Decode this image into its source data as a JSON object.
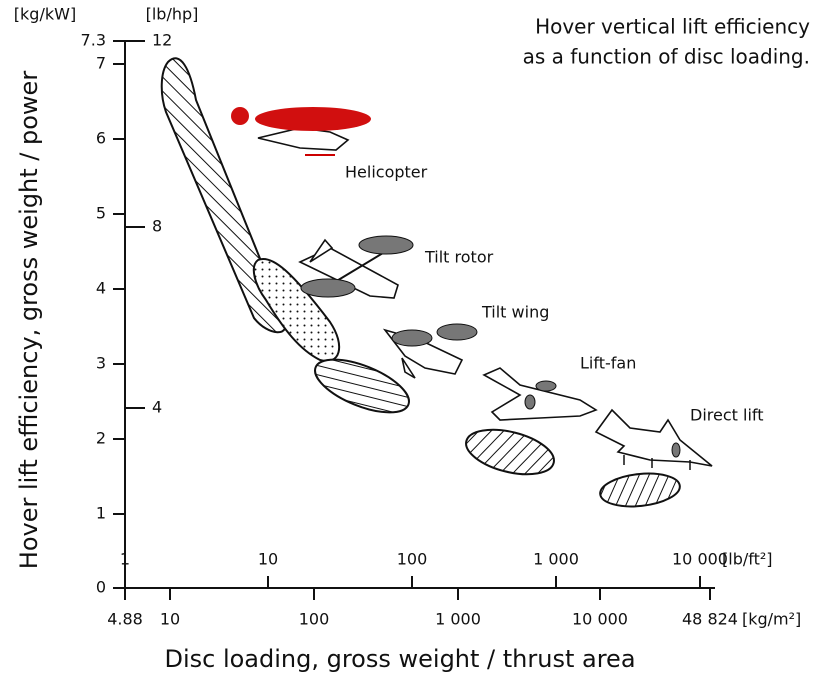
{
  "title": [
    "Hover vertical lift efficiency",
    "as a function of disc loading."
  ],
  "y_axis": {
    "title": "Hover lift efficiency, gross weight / power",
    "left_unit": "[kg/kW]",
    "right_unit": "[lb/hp]",
    "left_ticks": [
      "7.3",
      "7",
      "6",
      "5",
      "4",
      "3",
      "2",
      "1",
      "0"
    ],
    "right_ticks": [
      "12",
      "8",
      "4"
    ]
  },
  "x_axis": {
    "title": "Disc loading, gross weight / thrust area",
    "top_unit": "[lb/ft²]",
    "bottom_unit": "[kg/m²]",
    "top_ticks": [
      "1",
      "10",
      "100",
      "1 000",
      "10 000"
    ],
    "bottom_ticks": [
      "4.88",
      "10",
      "100",
      "1 000",
      "10 000",
      "48 824"
    ]
  },
  "aircraft": [
    "Helicopter",
    "Tilt rotor",
    "Tilt wing",
    "Lift-fan",
    "Direct lift"
  ]
}
